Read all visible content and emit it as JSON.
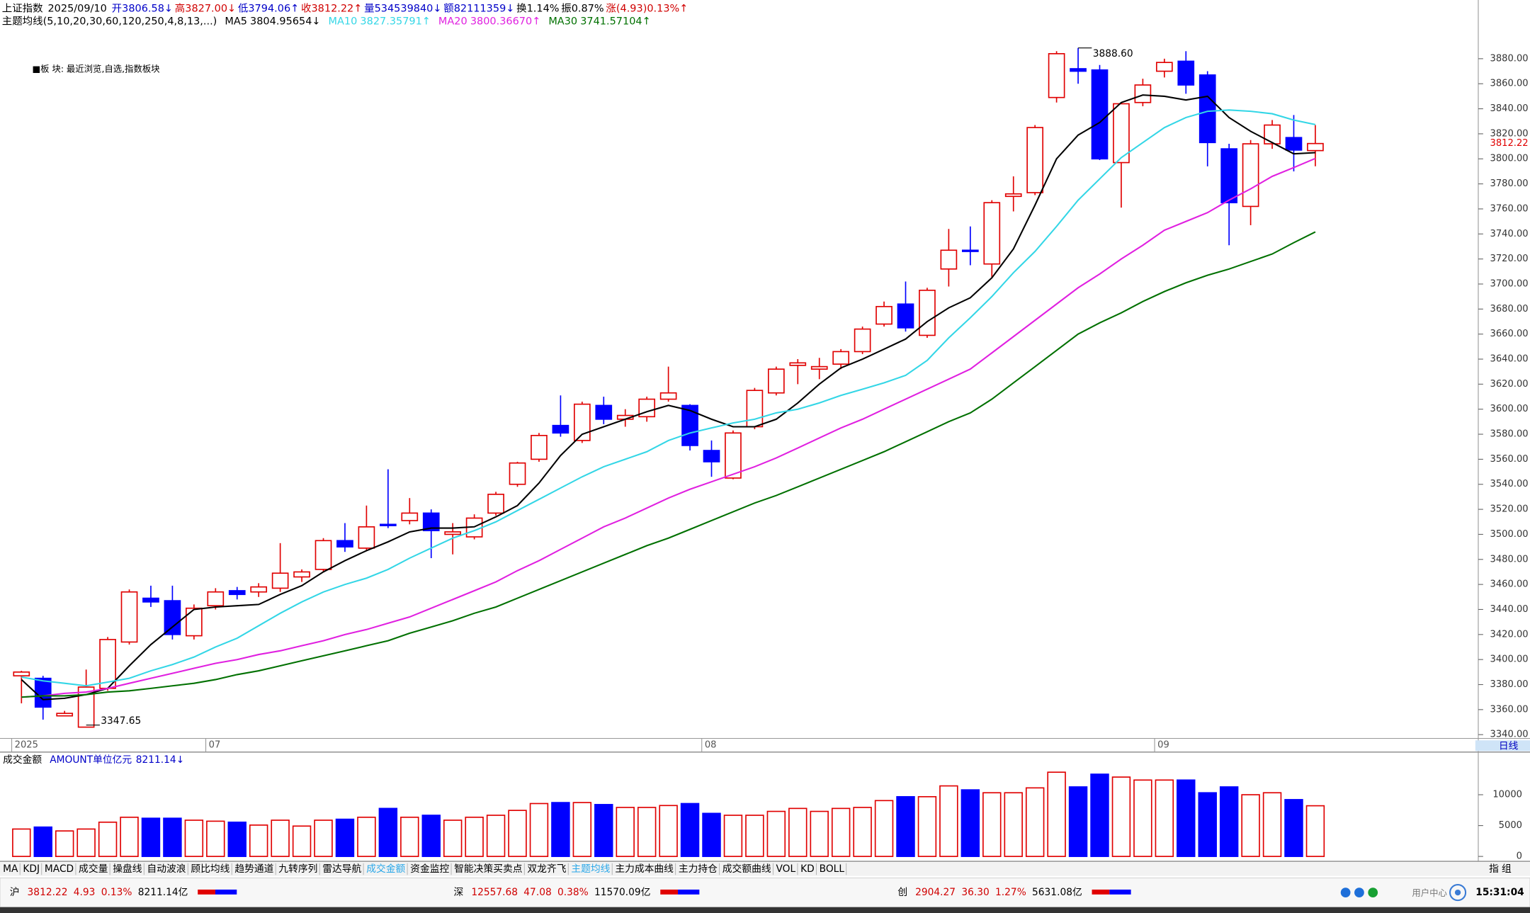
{
  "header": {
    "items": [
      {
        "text": "上证指数",
        "color": "#000000"
      },
      {
        "text": "2025/09/10",
        "color": "#000000"
      },
      {
        "text": "开3806.58↓",
        "color": "#0000c8"
      },
      {
        "text": "高3827.00↓",
        "color": "#d00000"
      },
      {
        "text": "低3794.06↑",
        "color": "#0000c8"
      },
      {
        "text": "收3812.22↑",
        "color": "#d00000"
      },
      {
        "text": "量534539840↓",
        "color": "#0000c8"
      },
      {
        "text": "额82111359↓",
        "color": "#0000c8"
      },
      {
        "text": "换1.14%",
        "color": "#000000"
      },
      {
        "text": "振0.87%",
        "color": "#000000"
      },
      {
        "text": "涨(4.93)0.13%↑",
        "color": "#d00000"
      }
    ],
    "legend_title": "主题均线(5,10,20,30,60,120,250,4,8,13,...)",
    "sector": "■板 块: 最近浏览,自选,指数板块"
  },
  "chart_data": [
    {
      "type": "candlestick",
      "categories": [
        "2025",
        null,
        null,
        null,
        null,
        null,
        null,
        null,
        null,
        "07",
        null,
        null,
        null,
        null,
        null,
        null,
        null,
        null,
        null,
        null,
        null,
        null,
        null,
        null,
        null,
        null,
        null,
        null,
        null,
        null,
        null,
        null,
        "08",
        null,
        null,
        null,
        null,
        null,
        null,
        null,
        null,
        null,
        null,
        null,
        null,
        null,
        null,
        null,
        null,
        null,
        null,
        null,
        null,
        "09",
        null,
        null,
        null,
        null,
        null,
        null,
        null
      ],
      "open": [
        3387,
        3385,
        3355,
        3346,
        3377,
        3414,
        3449,
        3447,
        3419,
        3443,
        3455,
        3454,
        3457,
        3466,
        3472,
        3495,
        3489,
        3508,
        3511,
        3517,
        3500,
        3498,
        3517,
        3540,
        3560,
        3587,
        3575,
        3603,
        3592,
        3594,
        3608,
        3603,
        3567,
        3545,
        3586,
        3613,
        3635,
        3632,
        3636,
        3646,
        3668,
        3684,
        3659,
        3712,
        3727,
        3716,
        3770,
        3773,
        3849,
        3872,
        3871,
        3797,
        3845,
        3870,
        3878,
        3867,
        3808,
        3762,
        3812,
        3817,
        3806.58
      ],
      "high": [
        3391,
        3387,
        3359,
        3392,
        3418,
        3456,
        3459,
        3459,
        3444,
        3457,
        3458,
        3461,
        3493,
        3472,
        3497,
        3509,
        3523,
        3552,
        3529,
        3520,
        3509,
        3516,
        3534,
        3558,
        3581,
        3611,
        3606,
        3610,
        3600,
        3610,
        3634,
        3604,
        3575,
        3583,
        3617,
        3634,
        3640,
        3641,
        3648,
        3666,
        3686,
        3702,
        3697,
        3744,
        3746,
        3767,
        3786,
        3827,
        3886,
        3888.6,
        3875,
        3845,
        3864,
        3880,
        3886,
        3870,
        3812,
        3815,
        3831,
        3835,
        3827
      ],
      "low": [
        3365,
        3352,
        3355,
        3347.65,
        3375,
        3412,
        3442,
        3416,
        3416,
        3440,
        3448,
        3450,
        3454,
        3462,
        3470,
        3486,
        3487,
        3505,
        3508,
        3481,
        3484,
        3496,
        3515,
        3538,
        3558,
        3578,
        3573,
        3588,
        3586,
        3590,
        3606,
        3567,
        3546,
        3544,
        3584,
        3611,
        3620,
        3624,
        3632,
        3644,
        3666,
        3662,
        3657,
        3698,
        3715,
        3705,
        3758,
        3771,
        3845,
        3860,
        3799,
        3761,
        3842,
        3865,
        3852,
        3794,
        3731,
        3747,
        3808,
        3790,
        3794.06
      ],
      "close": [
        3390,
        3362,
        3357,
        3378,
        3416,
        3454,
        3446,
        3420,
        3441,
        3454,
        3452,
        3458,
        3469,
        3470,
        3495,
        3490,
        3506,
        3507,
        3517,
        3503,
        3502,
        3513,
        3532,
        3557,
        3579,
        3581,
        3604,
        3592,
        3595,
        3608,
        3613,
        3571,
        3558,
        3581,
        3615,
        3632,
        3637,
        3634,
        3646,
        3664,
        3682,
        3665,
        3695,
        3727,
        3726,
        3765,
        3772,
        3825,
        3884,
        3870,
        3800,
        3844,
        3859,
        3877,
        3859,
        3813,
        3765,
        3812,
        3827,
        3807,
        3812.22
      ],
      "up_color": "#e00000",
      "down_color": "#0000ff",
      "series": [
        {
          "name": "MA5",
          "label": "3804.95654↓",
          "color": "#000000",
          "values": [
            3384,
            3368,
            3369,
            3372,
            3377,
            3395,
            3412,
            3426,
            3440,
            3442,
            3443,
            3444,
            3452,
            3459,
            3470,
            3479,
            3487,
            3494,
            3502,
            3505,
            3505,
            3506,
            3514,
            3523,
            3541,
            3563,
            3580,
            3586,
            3592,
            3598,
            3603,
            3599,
            3592,
            3586,
            3586,
            3592,
            3605,
            3620,
            3633,
            3640,
            3648,
            3656,
            3670,
            3681,
            3689,
            3705,
            3728,
            3763,
            3800,
            3819,
            3829,
            3845,
            3851,
            3850,
            3847,
            3850,
            3833,
            3822,
            3813,
            3804,
            3804.96
          ]
        },
        {
          "name": "MA10",
          "label": "3827.35791↑",
          "color": "#33d6e6",
          "values": [
            3386,
            3383,
            3381,
            3379,
            3382,
            3385,
            3391,
            3396,
            3402,
            3410,
            3417,
            3427,
            3437,
            3446,
            3454,
            3460,
            3465,
            3472,
            3481,
            3489,
            3497,
            3503,
            3510,
            3519,
            3528,
            3537,
            3546,
            3554,
            3560,
            3566,
            3575,
            3581,
            3585,
            3589,
            3592,
            3597,
            3600,
            3605,
            3611,
            3616,
            3621,
            3627,
            3639,
            3657,
            3673,
            3690,
            3709,
            3726,
            3746,
            3767,
            3784,
            3801,
            3813,
            3825,
            3833,
            3838,
            3839,
            3838,
            3836,
            3831,
            3827.36
          ]
        },
        {
          "name": "MA20",
          "label": "3800.36670↑",
          "color": "#e020e0",
          "values": [
            3370,
            3371,
            3373,
            3374,
            3377,
            3381,
            3385,
            3389,
            3393,
            3397,
            3400,
            3404,
            3407,
            3411,
            3415,
            3420,
            3424,
            3429,
            3434,
            3441,
            3448,
            3455,
            3462,
            3471,
            3479,
            3488,
            3497,
            3506,
            3513,
            3521,
            3529,
            3536,
            3542,
            3548,
            3554,
            3561,
            3569,
            3577,
            3585,
            3592,
            3600,
            3608,
            3616,
            3624,
            3632,
            3645,
            3658,
            3671,
            3684,
            3697,
            3708,
            3720,
            3731,
            3743,
            3750,
            3757,
            3767,
            3776,
            3786,
            3793,
            3800.37
          ]
        },
        {
          "name": "MA30",
          "label": "3741.57104↑",
          "color": "#007000",
          "values": [
            3370,
            3371,
            3371,
            3372,
            3374,
            3375,
            3377,
            3379,
            3381,
            3384,
            3388,
            3391,
            3395,
            3399,
            3403,
            3407,
            3411,
            3415,
            3421,
            3426,
            3431,
            3437,
            3442,
            3449,
            3456,
            3463,
            3470,
            3477,
            3484,
            3491,
            3497,
            3504,
            3511,
            3518,
            3525,
            3531,
            3538,
            3545,
            3552,
            3559,
            3566,
            3574,
            3582,
            3590,
            3597,
            3608,
            3621,
            3634,
            3647,
            3660,
            3669,
            3677,
            3686,
            3694,
            3701,
            3707,
            3712,
            3718,
            3724,
            3733,
            3741.57
          ]
        }
      ],
      "ylim": [
        3337,
        3923
      ],
      "yticks": [
        {
          "value": 3340,
          "label": "3340.00"
        },
        {
          "value": 3360,
          "label": "3360.00"
        },
        {
          "value": 3380,
          "label": "3380.00"
        },
        {
          "value": 3400,
          "label": "3400.00"
        },
        {
          "value": 3420,
          "label": "3420.00"
        },
        {
          "value": 3440,
          "label": "3440.00"
        },
        {
          "value": 3460,
          "label": "3460.00"
        },
        {
          "value": 3480,
          "label": "3480.00"
        },
        {
          "value": 3500,
          "label": "3500.00"
        },
        {
          "value": 3520,
          "label": "3520.00"
        },
        {
          "value": 3540,
          "label": "3540.00"
        },
        {
          "value": 3560,
          "label": "3560.00"
        },
        {
          "value": 3580,
          "label": "3580.00"
        },
        {
          "value": 3600,
          "label": "3600.00"
        },
        {
          "value": 3620,
          "label": "3620.00"
        },
        {
          "value": 3640,
          "label": "3640.00"
        },
        {
          "value": 3660,
          "label": "3660.00"
        },
        {
          "value": 3680,
          "label": "3680.00"
        },
        {
          "value": 3700,
          "label": "3700.00"
        },
        {
          "value": 3720,
          "label": "3720.00"
        },
        {
          "value": 3740,
          "label": "3740.00"
        },
        {
          "value": 3760,
          "label": "3760.00"
        },
        {
          "value": 3780,
          "label": "3780.00"
        },
        {
          "value": 3800,
          "label": "3800.00"
        },
        {
          "value": 3820,
          "label": "3820.00"
        },
        {
          "value": 3840,
          "label": "3840.00"
        },
        {
          "value": 3860,
          "label": "3860.00"
        },
        {
          "value": 3880,
          "label": "3880.00"
        }
      ],
      "high_marker": {
        "index": 49,
        "value": 3888.6,
        "label": "3888.60"
      },
      "low_marker": {
        "index": 3,
        "value": 3347.65,
        "label": "3347.65"
      },
      "last_price": {
        "value": 3812.22,
        "label": "3812.22"
      },
      "period": "日线"
    },
    {
      "type": "bar",
      "title": "成交金额",
      "subtitle": "AMOUNT单位亿元",
      "value_label": "8211.14↓",
      "values": [
        4440,
        4760,
        4130,
        4440,
        5550,
        6350,
        6190,
        6190,
        5870,
        5710,
        5550,
        5080,
        5870,
        4920,
        5870,
        6030,
        6350,
        7780,
        6350,
        6670,
        5870,
        6350,
        6670,
        7460,
        8570,
        8730,
        8730,
        8410,
        7940,
        7940,
        8250,
        8570,
        6980,
        6670,
        6670,
        7300,
        7780,
        7300,
        7780,
        7940,
        9050,
        9680,
        9680,
        11430,
        10790,
        10320,
        10320,
        11110,
        13650,
        11270,
        13330,
        12860,
        12380,
        12380,
        12380,
        10320,
        11270,
        10000,
        10320,
        9210,
        8211.14
      ],
      "ylim": [
        0,
        16600
      ],
      "yticks": [
        0,
        5000,
        10000
      ]
    }
  ],
  "tabs": [
    "MA",
    "KDJ",
    "MACD",
    "成交量",
    "操盘线",
    "自动波浪",
    "顾比均线",
    "趋势通道",
    "九转序列",
    "雷达导航",
    "成交金额",
    "资金监控",
    "智能决策买卖点",
    "双龙齐飞",
    "主题均线",
    "主力成本曲线",
    "主力持仓",
    "成交额曲线",
    "VOL",
    "KD",
    "BOLL"
  ],
  "active_tabs": [
    "成交金额",
    "主题均线"
  ],
  "tab_right": [
    "指",
    "组"
  ],
  "status": [
    {
      "name": "沪",
      "price": "3812.22",
      "change": "4.93",
      "pct": "0.13%",
      "amount": "8211.14亿"
    },
    {
      "name": "深",
      "price": "12557.68",
      "change": "47.08",
      "pct": "0.38%",
      "amount": "11570.09亿"
    },
    {
      "name": "创",
      "price": "2904.27",
      "change": "36.30",
      "pct": "1.27%",
      "amount": "5631.08亿"
    }
  ],
  "user_center": "用户中心",
  "clock": "15:31:04"
}
